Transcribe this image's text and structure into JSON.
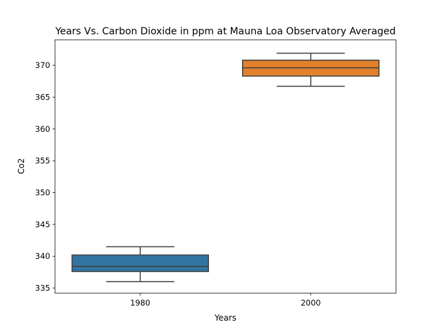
{
  "chart_data": {
    "type": "box",
    "title": "Years Vs. Carbon Dioxide in ppm at Mauna Loa Observatory Averaged",
    "xlabel": "Years",
    "ylabel": "Co2",
    "categories": [
      "1980",
      "2000"
    ],
    "ylim": [
      334.2,
      374.0
    ],
    "yticks": [
      335,
      340,
      345,
      350,
      355,
      360,
      365,
      370
    ],
    "grid": false,
    "legend": "none",
    "boxes": [
      {
        "category": "1980",
        "whislo": 336.0,
        "q1": 337.6,
        "med": 338.4,
        "q3": 340.2,
        "whishi": 341.5,
        "color": "#3274a1"
      },
      {
        "category": "2000",
        "whislo": 366.7,
        "q1": 368.3,
        "med": 369.6,
        "q3": 370.8,
        "whishi": 371.9,
        "color": "#e1812c"
      }
    ]
  }
}
